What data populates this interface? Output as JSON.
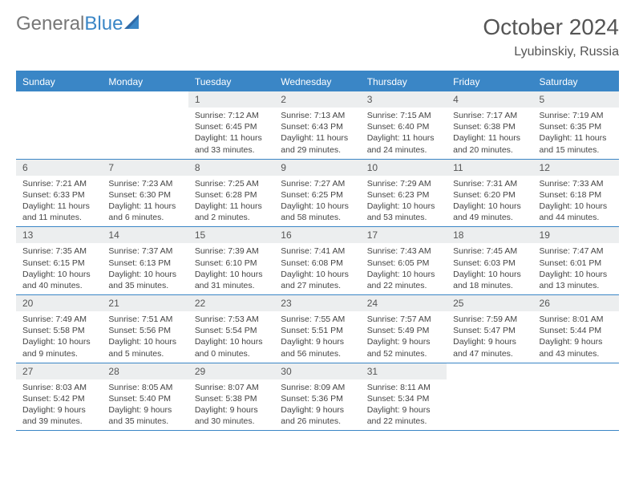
{
  "brand": {
    "part1": "General",
    "part2": "Blue"
  },
  "title": "October 2024",
  "location": "Lyubinskiy, Russia",
  "colors": {
    "accent": "#3a86c6",
    "headerRow": "#3a86c6",
    "dayNumBg": "#eceeef",
    "text": "#444444",
    "bodyBg": "#ffffff"
  },
  "weekdays": [
    "Sunday",
    "Monday",
    "Tuesday",
    "Wednesday",
    "Thursday",
    "Friday",
    "Saturday"
  ],
  "weeks": [
    [
      null,
      null,
      {
        "n": "1",
        "sr": "7:12 AM",
        "ss": "6:45 PM",
        "dl": "11 hours and 33 minutes."
      },
      {
        "n": "2",
        "sr": "7:13 AM",
        "ss": "6:43 PM",
        "dl": "11 hours and 29 minutes."
      },
      {
        "n": "3",
        "sr": "7:15 AM",
        "ss": "6:40 PM",
        "dl": "11 hours and 24 minutes."
      },
      {
        "n": "4",
        "sr": "7:17 AM",
        "ss": "6:38 PM",
        "dl": "11 hours and 20 minutes."
      },
      {
        "n": "5",
        "sr": "7:19 AM",
        "ss": "6:35 PM",
        "dl": "11 hours and 15 minutes."
      }
    ],
    [
      {
        "n": "6",
        "sr": "7:21 AM",
        "ss": "6:33 PM",
        "dl": "11 hours and 11 minutes."
      },
      {
        "n": "7",
        "sr": "7:23 AM",
        "ss": "6:30 PM",
        "dl": "11 hours and 6 minutes."
      },
      {
        "n": "8",
        "sr": "7:25 AM",
        "ss": "6:28 PM",
        "dl": "11 hours and 2 minutes."
      },
      {
        "n": "9",
        "sr": "7:27 AM",
        "ss": "6:25 PM",
        "dl": "10 hours and 58 minutes."
      },
      {
        "n": "10",
        "sr": "7:29 AM",
        "ss": "6:23 PM",
        "dl": "10 hours and 53 minutes."
      },
      {
        "n": "11",
        "sr": "7:31 AM",
        "ss": "6:20 PM",
        "dl": "10 hours and 49 minutes."
      },
      {
        "n": "12",
        "sr": "7:33 AM",
        "ss": "6:18 PM",
        "dl": "10 hours and 44 minutes."
      }
    ],
    [
      {
        "n": "13",
        "sr": "7:35 AM",
        "ss": "6:15 PM",
        "dl": "10 hours and 40 minutes."
      },
      {
        "n": "14",
        "sr": "7:37 AM",
        "ss": "6:13 PM",
        "dl": "10 hours and 35 minutes."
      },
      {
        "n": "15",
        "sr": "7:39 AM",
        "ss": "6:10 PM",
        "dl": "10 hours and 31 minutes."
      },
      {
        "n": "16",
        "sr": "7:41 AM",
        "ss": "6:08 PM",
        "dl": "10 hours and 27 minutes."
      },
      {
        "n": "17",
        "sr": "7:43 AM",
        "ss": "6:05 PM",
        "dl": "10 hours and 22 minutes."
      },
      {
        "n": "18",
        "sr": "7:45 AM",
        "ss": "6:03 PM",
        "dl": "10 hours and 18 minutes."
      },
      {
        "n": "19",
        "sr": "7:47 AM",
        "ss": "6:01 PM",
        "dl": "10 hours and 13 minutes."
      }
    ],
    [
      {
        "n": "20",
        "sr": "7:49 AM",
        "ss": "5:58 PM",
        "dl": "10 hours and 9 minutes."
      },
      {
        "n": "21",
        "sr": "7:51 AM",
        "ss": "5:56 PM",
        "dl": "10 hours and 5 minutes."
      },
      {
        "n": "22",
        "sr": "7:53 AM",
        "ss": "5:54 PM",
        "dl": "10 hours and 0 minutes."
      },
      {
        "n": "23",
        "sr": "7:55 AM",
        "ss": "5:51 PM",
        "dl": "9 hours and 56 minutes."
      },
      {
        "n": "24",
        "sr": "7:57 AM",
        "ss": "5:49 PM",
        "dl": "9 hours and 52 minutes."
      },
      {
        "n": "25",
        "sr": "7:59 AM",
        "ss": "5:47 PM",
        "dl": "9 hours and 47 minutes."
      },
      {
        "n": "26",
        "sr": "8:01 AM",
        "ss": "5:44 PM",
        "dl": "9 hours and 43 minutes."
      }
    ],
    [
      {
        "n": "27",
        "sr": "8:03 AM",
        "ss": "5:42 PM",
        "dl": "9 hours and 39 minutes."
      },
      {
        "n": "28",
        "sr": "8:05 AM",
        "ss": "5:40 PM",
        "dl": "9 hours and 35 minutes."
      },
      {
        "n": "29",
        "sr": "8:07 AM",
        "ss": "5:38 PM",
        "dl": "9 hours and 30 minutes."
      },
      {
        "n": "30",
        "sr": "8:09 AM",
        "ss": "5:36 PM",
        "dl": "9 hours and 26 minutes."
      },
      {
        "n": "31",
        "sr": "8:11 AM",
        "ss": "5:34 PM",
        "dl": "9 hours and 22 minutes."
      },
      null,
      null
    ]
  ],
  "labels": {
    "sunrise": "Sunrise:",
    "sunset": "Sunset:",
    "daylight": "Daylight:"
  }
}
